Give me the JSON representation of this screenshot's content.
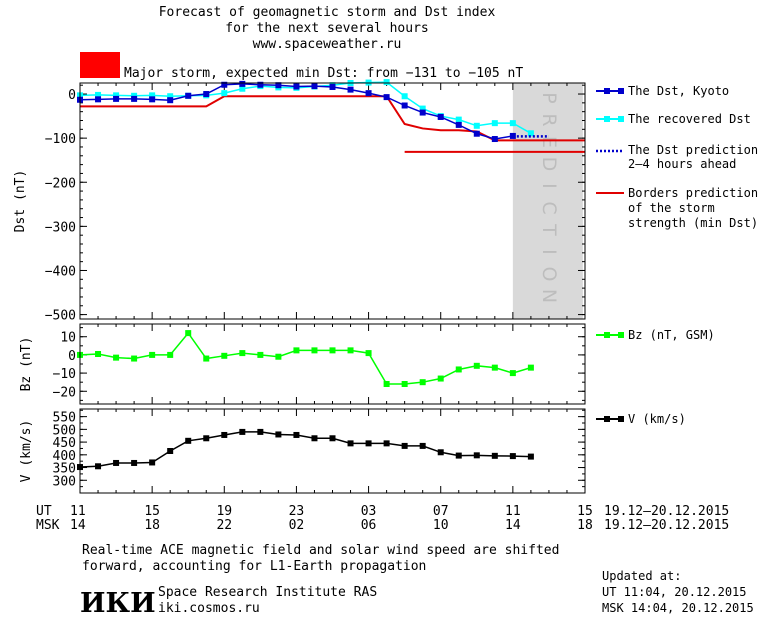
{
  "header": {
    "title_line1": "Forecast of geomagnetic storm and Dst index",
    "title_line2": "for the next several hours",
    "url": "www.spaceweather.ru",
    "storm_text": "Major storm, expected min Dst: from −131 to −105 nT",
    "storm_color": "#ff0000"
  },
  "colors": {
    "dst_kyoto": "#0000cc",
    "dst_recovered": "#00ffff",
    "dst_prediction": "#0000cc",
    "borders": "#e00000",
    "bz": "#00ff00",
    "v": "#000000",
    "prediction_band": "#d9d9d9"
  },
  "prediction_label": "PREDICTION",
  "axes": {
    "x_ut_row_label": "UT",
    "x_msk_row_label": "MSK",
    "x_ut_ticks": [
      "11",
      "15",
      "19",
      "23",
      "03",
      "07",
      "11",
      "15"
    ],
    "x_msk_ticks": [
      "14",
      "18",
      "22",
      "02",
      "06",
      "10",
      "14",
      "18"
    ],
    "date_range_ut": "19.12–20.12.2015",
    "date_range_msk": "19.12–20.12.2015",
    "dst": {
      "label": "Dst (nT)",
      "ticks": [
        "0",
        "−100",
        "−200",
        "−300",
        "−400",
        "−500"
      ]
    },
    "bz": {
      "label": "Bz (nT)",
      "ticks": [
        "10",
        "0",
        "−10",
        "−20"
      ]
    },
    "v": {
      "label": "V (km/s)",
      "ticks": [
        "550",
        "500",
        "450",
        "400",
        "350",
        "300"
      ]
    }
  },
  "legend": {
    "dst_kyoto": "The Dst, Kyoto",
    "dst_recovered": "The recovered Dst",
    "dst_prediction_l1": "The Dst prediction",
    "dst_prediction_l2": "2–4 hours ahead",
    "borders_l1": "Borders prediction",
    "borders_l2": "of the storm",
    "borders_l3": "strength (min Dst)",
    "bz": "Bz (nT, GSM)",
    "v": "V (km/s)"
  },
  "footer": {
    "note_line1": "Real-time ACE magnetic field and solar wind speed are shifted",
    "note_line2": "forward, accounting for L1-Earth propagation",
    "logo_text": "ИКИ",
    "institute": "Space Research Institute RAS",
    "site": "iki.cosmos.ru",
    "updated_label": "Updated at:",
    "updated_ut": "UT   11:04, 20.12.2015",
    "updated_msk": "MSK 14:04, 20.12.2015"
  },
  "chart_data": [
    {
      "type": "line",
      "panel": "dst",
      "xlabel": "",
      "ylabel": "Dst (nT)",
      "x_unit": "hours since 11 UT 19.12.2015",
      "xlim": [
        0,
        28
      ],
      "ylim": [
        -510,
        25
      ],
      "prediction_start_x": 24,
      "series": [
        {
          "name": "The Dst, Kyoto",
          "style": "line-markers",
          "x": [
            0,
            1,
            2,
            3,
            4,
            5,
            6,
            7,
            8,
            9,
            10,
            11,
            12,
            13,
            14,
            15,
            16,
            17,
            18,
            19,
            20,
            21,
            22,
            23,
            24
          ],
          "y": [
            -13,
            -12,
            -11,
            -11,
            -12,
            -14,
            -4,
            0,
            21,
            23,
            21,
            20,
            17,
            18,
            16,
            10,
            2,
            -7,
            -26,
            -42,
            -52,
            -70,
            -90,
            -102,
            -95
          ]
        },
        {
          "name": "The recovered Dst",
          "style": "line-markers",
          "x": [
            0,
            1,
            2,
            3,
            4,
            5,
            6,
            7,
            8,
            9,
            10,
            11,
            12,
            13,
            14,
            15,
            16,
            17,
            18,
            19,
            20,
            21,
            22,
            23,
            24,
            25
          ],
          "y": [
            -3,
            -2,
            -3,
            -4,
            -3,
            -5,
            -4,
            -3,
            2,
            12,
            18,
            15,
            14,
            17,
            20,
            25,
            26,
            27,
            -5,
            -33,
            -50,
            -58,
            -72,
            -66,
            -66,
            -89
          ]
        },
        {
          "name": "The Dst prediction 2–4 hours ahead",
          "style": "dotted",
          "x": [
            24,
            26
          ],
          "y": [
            -96,
            -96
          ]
        },
        {
          "name": "Borders prediction of the storm strength (min Dst)",
          "style": "line",
          "x": [
            0,
            7,
            8,
            17,
            18,
            19,
            20,
            21,
            22,
            23,
            24,
            28
          ],
          "y": [
            -28,
            -28,
            -5,
            -5,
            -68,
            -78,
            -82,
            -82,
            -85,
            -105,
            -105,
            -105
          ]
        },
        {
          "name": "Borders prediction lower",
          "style": "line",
          "x": [
            18,
            28
          ],
          "y": [
            -131,
            -131
          ]
        }
      ]
    },
    {
      "type": "line",
      "panel": "bz",
      "ylabel": "Bz (nT)",
      "xlim": [
        0,
        28
      ],
      "ylim": [
        -27,
        17
      ],
      "series": [
        {
          "name": "Bz (nT, GSM)",
          "x": [
            0,
            1,
            2,
            3,
            4,
            5,
            6,
            7,
            8,
            9,
            10,
            11,
            12,
            13,
            14,
            15,
            16,
            17,
            18,
            19,
            20,
            21,
            22,
            23,
            24,
            25
          ],
          "y": [
            0,
            0.5,
            -1.5,
            -2,
            0,
            0,
            12,
            -2,
            -0.5,
            1,
            0,
            -1,
            2.5,
            2.5,
            2.5,
            2.5,
            1,
            -16,
            -16,
            -15,
            -13,
            -8,
            -6,
            -7,
            -10,
            -7
          ]
        }
      ]
    },
    {
      "type": "line",
      "panel": "v",
      "ylabel": "V (km/s)",
      "xlim": [
        0,
        28
      ],
      "ylim": [
        250,
        580
      ],
      "series": [
        {
          "name": "V (km/s)",
          "x": [
            0,
            1,
            2,
            3,
            4,
            5,
            6,
            7,
            8,
            9,
            10,
            11,
            12,
            13,
            14,
            15,
            16,
            17,
            18,
            19,
            20,
            21,
            22,
            23,
            24,
            25
          ],
          "y": [
            352,
            355,
            368,
            368,
            370,
            415,
            455,
            465,
            478,
            490,
            490,
            480,
            478,
            465,
            465,
            445,
            445,
            445,
            435,
            435,
            410,
            397,
            398,
            396,
            395,
            393
          ]
        }
      ]
    }
  ]
}
